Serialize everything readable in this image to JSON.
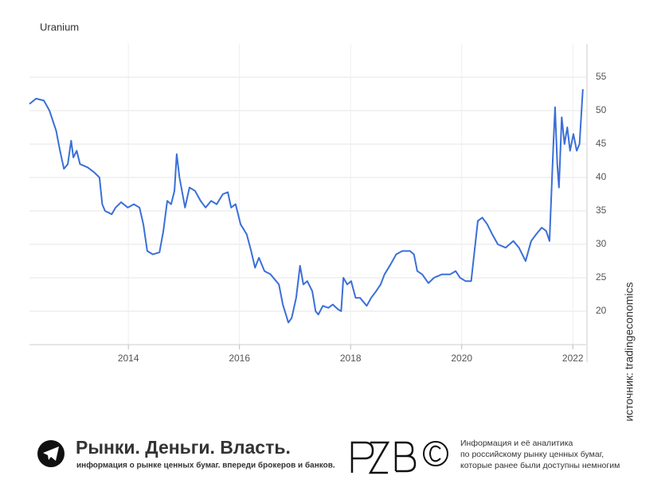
{
  "chart_data": {
    "type": "line",
    "title": "Uranium",
    "color": "#3a6fd8",
    "grid": true,
    "x": [
      2012.22,
      2012.34,
      2012.48,
      2012.58,
      2012.7,
      2012.77,
      2012.84,
      2012.91,
      2012.97,
      2013.01,
      2013.07,
      2013.13,
      2013.27,
      2013.38,
      2013.48,
      2013.53,
      2013.58,
      2013.7,
      2013.77,
      2013.87,
      2013.99,
      2014.1,
      2014.2,
      2014.27,
      2014.34,
      2014.44,
      2014.56,
      2014.63,
      2014.7,
      2014.77,
      2014.83,
      2014.87,
      2014.92,
      2015.02,
      2015.1,
      2015.2,
      2015.3,
      2015.39,
      2015.49,
      2015.59,
      2015.7,
      2015.79,
      2015.85,
      2015.93,
      2016.02,
      2016.13,
      2016.21,
      2016.28,
      2016.35,
      2016.45,
      2016.56,
      2016.71,
      2016.78,
      2016.88,
      2016.94,
      2017.02,
      2017.09,
      2017.15,
      2017.22,
      2017.31,
      2017.37,
      2017.42,
      2017.5,
      2017.6,
      2017.68,
      2017.77,
      2017.83,
      2017.87,
      2017.94,
      2018.01,
      2018.09,
      2018.17,
      2018.29,
      2018.37,
      2018.46,
      2018.54,
      2018.61,
      2018.72,
      2018.82,
      2018.93,
      2019.07,
      2019.14,
      2019.2,
      2019.29,
      2019.4,
      2019.5,
      2019.64,
      2019.79,
      2019.89,
      2019.97,
      2020.07,
      2020.17,
      2020.23,
      2020.29,
      2020.37,
      2020.46,
      2020.55,
      2020.65,
      2020.79,
      2020.93,
      2021.03,
      2021.15,
      2021.25,
      2021.34,
      2021.44,
      2021.52,
      2021.58,
      2021.65,
      2021.68,
      2021.72,
      2021.75,
      2021.8,
      2021.85,
      2021.9,
      2021.95,
      2022.01,
      2022.07,
      2022.12,
      2022.18
    ],
    "values": [
      51,
      51.8,
      51.5,
      50,
      47,
      44,
      41.3,
      42,
      45.5,
      43,
      44,
      42,
      41.5,
      40.8,
      40,
      36,
      35,
      34.5,
      35.5,
      36.3,
      35.5,
      36,
      35.5,
      33,
      29,
      28.5,
      28.8,
      32,
      36.5,
      36,
      38,
      43.5,
      40,
      35.5,
      38.5,
      38,
      36.5,
      35.5,
      36.5,
      36,
      37.5,
      37.8,
      35.5,
      36,
      33,
      31.5,
      29,
      26.5,
      28,
      26,
      25.5,
      24,
      21,
      18.3,
      19,
      22,
      26.8,
      24,
      24.5,
      23,
      20,
      19.5,
      20.8,
      20.5,
      21,
      20.3,
      20,
      25,
      24,
      24.5,
      22,
      22,
      20.8,
      22,
      23,
      24,
      25.5,
      27,
      28.5,
      29,
      29,
      28.5,
      26,
      25.5,
      24.2,
      25,
      25.5,
      25.5,
      26,
      25,
      24.5,
      24.5,
      29,
      33.5,
      34,
      33,
      31.5,
      30,
      29.5,
      30.5,
      29.5,
      27.5,
      30.5,
      31.5,
      32.5,
      32,
      30.5,
      45,
      50.5,
      42,
      38.5,
      49,
      45,
      47.5,
      44,
      46.5,
      44,
      45,
      53.2
    ],
    "xlim": [
      2012.22,
      2022.24
    ],
    "xticks": [
      2014,
      2016,
      2018,
      2020,
      2022
    ],
    "ylim": [
      15,
      60
    ],
    "yticks": [
      20,
      25,
      30,
      35,
      40,
      45,
      50,
      55
    ],
    "source": "источник: tradingeconomics"
  },
  "footer": {
    "brand": "Рынки. Деньги. Власть.",
    "tagline": "информация о рынке ценных бумаг. впереди брокеров и банков.",
    "description": [
      "Информация и её аналитика",
      "по российскому рынку ценных бумаг,",
      "которые ранее были доступны немногим"
    ]
  }
}
